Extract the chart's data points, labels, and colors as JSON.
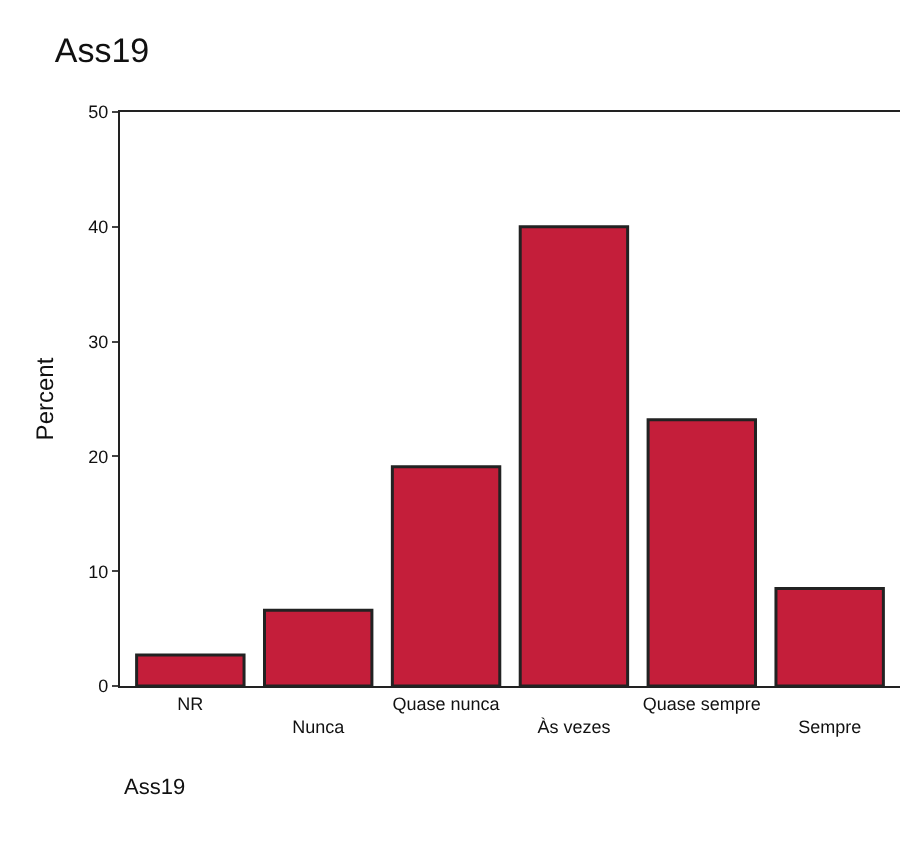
{
  "chart_data": {
    "type": "bar",
    "title": "Ass19",
    "xlabel": "Ass19",
    "ylabel": "Percent",
    "categories": [
      "NR",
      "Nunca",
      "Quase nunca",
      "Às vezes",
      "Quase sempre",
      "Sempre"
    ],
    "values": [
      2.7,
      6.6,
      19.1,
      40.0,
      23.2,
      8.5
    ],
    "color": "#c41e3a",
    "ylim": [
      0,
      50
    ],
    "yticks": [
      0,
      10,
      20,
      30,
      40,
      50
    ]
  }
}
